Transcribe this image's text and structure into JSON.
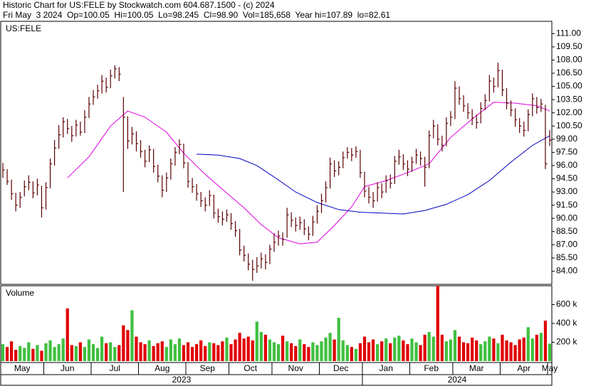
{
  "chart_data": {
    "type": "ohlc",
    "title": "Historic Chart for US:FELE by Stockwatch.com 604.687.1500 - (c) 2024",
    "subtitle": "Fri May  3 2024  Op=100.05  Hi=100.05  Lo=98.245  Cl=98.90  Vol=185,658  Year hi=107.89  lo=82.61",
    "symbol": "US:FELE",
    "bar_color": "#5a0000",
    "xlim": [
      -0.5,
      127.5
    ],
    "xticks": [
      {
        "value": -0.5,
        "label": "May"
      },
      {
        "value": 9.5,
        "label": "Jun"
      },
      {
        "value": 20.5,
        "label": "Jul"
      },
      {
        "value": 31.5,
        "label": "Aug"
      },
      {
        "value": 42.5,
        "label": "Sep"
      },
      {
        "value": 52.5,
        "label": "Oct"
      },
      {
        "value": 62.5,
        "label": "Nov"
      },
      {
        "value": 73.5,
        "label": "Dec"
      },
      {
        "value": 83.5,
        "label": "Jan"
      },
      {
        "value": 94.5,
        "label": "Feb"
      },
      {
        "value": 104.5,
        "label": "Mar"
      },
      {
        "value": 115.5,
        "label": "Apr"
      },
      {
        "value": 126.5,
        "label": "May"
      }
    ],
    "year_ticks": [
      {
        "value": -0.5,
        "label": "2023"
      },
      {
        "value": 83.5,
        "label": "2024"
      }
    ],
    "ylim": [
      82.5,
      112.4
    ],
    "yticks": [
      {
        "value": 84,
        "label": "84.00"
      },
      {
        "value": 85.5,
        "label": "85.50"
      },
      {
        "value": 87,
        "label": "87.00"
      },
      {
        "value": 88.5,
        "label": "88.50"
      },
      {
        "value": 90,
        "label": "90.00"
      },
      {
        "value": 91.5,
        "label": "91.50"
      },
      {
        "value": 93,
        "label": "93.00"
      },
      {
        "value": 94.5,
        "label": "94.50"
      },
      {
        "value": 96,
        "label": "96.00"
      },
      {
        "value": 97.5,
        "label": "97.50"
      },
      {
        "value": 99,
        "label": "99.00"
      },
      {
        "value": 100.5,
        "label": "100.50"
      },
      {
        "value": 102,
        "label": "102.00"
      },
      {
        "value": 103.5,
        "label": "103.50"
      },
      {
        "value": 105,
        "label": "105.00"
      },
      {
        "value": 106.5,
        "label": "106.50"
      },
      {
        "value": 108,
        "label": "108.00"
      },
      {
        "value": 109.5,
        "label": "109.50"
      },
      {
        "value": 111,
        "label": "111.00"
      }
    ],
    "high": [
      96.3,
      95.6,
      94.4,
      92.9,
      93.0,
      94.3,
      94.9,
      94.2,
      94.5,
      93.7,
      94.1,
      96.8,
      98.9,
      100.6,
      101.5,
      101.3,
      100.5,
      101.2,
      101.0,
      102.3,
      103.8,
      104.6,
      105.2,
      106.3,
      106.0,
      106.9,
      107.4,
      107.2,
      103.8,
      101.6,
      100.4,
      99.9,
      98.9,
      97.8,
      98.3,
      97.9,
      96.1,
      94.9,
      95.2,
      96.8,
      98.1,
      99.0,
      98.5,
      96.4,
      94.6,
      93.9,
      93.0,
      92.4,
      93.2,
      92.7,
      91.1,
      90.8,
      91.0,
      90.6,
      89.7,
      88.8,
      86.9,
      86.0,
      85.3,
      85.6,
      86.1,
      85.9,
      87.0,
      88.3,
      88.6,
      88.4,
      91.2,
      90.7,
      90.1,
      90.2,
      89.9,
      89.1,
      90.3,
      91.5,
      92.8,
      94.2,
      96.9,
      96.6,
      96.5,
      97.6,
      98.1,
      98.0,
      98.2,
      97.8,
      95.3,
      93.6,
      93.0,
      94.1,
      94.0,
      94.9,
      95.0,
      97.1,
      97.8,
      97.3,
      96.6,
      97.0,
      97.9,
      97.6,
      97.0,
      100.0,
      101.2,
      100.7,
      99.4,
      101.5,
      102.2,
      105.6,
      105.0,
      104.0,
      103.1,
      102.4,
      101.8,
      103.2,
      104.1,
      106.3,
      106.0,
      107.7,
      106.9,
      104.8,
      103.4,
      102.5,
      101.4,
      101.0,
      102.4,
      104.2,
      103.8,
      103.6,
      102.9,
      100.05
    ],
    "low": [
      94.6,
      93.8,
      92.1,
      90.8,
      91.2,
      92.5,
      93.2,
      92.3,
      92.6,
      90.1,
      91.0,
      93.4,
      96.0,
      97.9,
      99.2,
      99.6,
      98.7,
      99.3,
      99.4,
      99.7,
      101.4,
      102.9,
      103.6,
      104.2,
      104.3,
      104.8,
      105.9,
      105.6,
      93.0,
      97.9,
      98.4,
      97.6,
      96.9,
      95.8,
      96.4,
      95.2,
      94.1,
      92.4,
      93.0,
      94.4,
      96.0,
      97.3,
      95.7,
      93.5,
      92.9,
      92.0,
      91.3,
      90.8,
      91.4,
      90.0,
      89.5,
      89.2,
      89.6,
      88.7,
      87.9,
      85.8,
      85.1,
      84.1,
      82.9,
      83.8,
      84.3,
      84.2,
      84.8,
      86.2,
      86.9,
      86.9,
      87.8,
      89.0,
      88.5,
      88.7,
      88.1,
      87.5,
      88.0,
      89.4,
      90.6,
      91.8,
      93.4,
      94.7,
      94.9,
      95.7,
      96.8,
      96.5,
      96.9,
      94.6,
      92.4,
      91.7,
      91.2,
      91.9,
      92.3,
      92.9,
      93.4,
      93.9,
      96.1,
      95.5,
      94.8,
      95.3,
      96.2,
      96.0,
      93.6,
      95.7,
      99.1,
      98.3,
      97.6,
      98.2,
      100.5,
      101.3,
      102.9,
      102.1,
      101.3,
      100.6,
      100.2,
      100.8,
      102.3,
      103.3,
      104.3,
      104.9,
      103.9,
      102.4,
      101.6,
      100.4,
      99.7,
      99.3,
      99.9,
      101.6,
      101.9,
      102.1,
      95.6,
      98.245
    ],
    "close": [
      95.5,
      94.2,
      92.8,
      91.5,
      92.4,
      93.6,
      94.1,
      92.9,
      93.8,
      91.2,
      93.5,
      96.2,
      98.0,
      99.5,
      101.0,
      100.2,
      99.4,
      100.6,
      99.8,
      101.5,
      103.0,
      103.8,
      104.5,
      105.6,
      104.9,
      106.2,
      107.0,
      106.4,
      101.5,
      98.8,
      99.6,
      98.5,
      97.6,
      96.5,
      97.8,
      95.9,
      94.8,
      93.2,
      94.6,
      96.2,
      97.5,
      98.4,
      96.3,
      94.2,
      93.6,
      92.8,
      92.0,
      91.5,
      92.6,
      90.6,
      90.2,
      89.9,
      90.4,
      89.4,
      88.6,
      86.4,
      85.8,
      84.8,
      84.2,
      84.6,
      85.4,
      85.0,
      86.5,
      87.3,
      88.0,
      87.6,
      90.4,
      89.8,
      89.2,
      89.5,
      88.8,
      88.2,
      89.6,
      90.8,
      92.0,
      93.5,
      96.2,
      95.4,
      95.8,
      96.9,
      97.5,
      97.2,
      97.6,
      95.2,
      93.1,
      92.4,
      92.0,
      93.5,
      93.0,
      94.3,
      94.0,
      96.5,
      97.0,
      96.2,
      95.6,
      96.4,
      97.2,
      96.8,
      95.8,
      99.4,
      100.5,
      99.0,
      98.3,
      100.8,
      101.5,
      104.8,
      103.6,
      102.8,
      102.0,
      101.4,
      100.9,
      102.5,
      103.4,
      105.6,
      105.0,
      106.8,
      104.6,
      103.1,
      102.3,
      101.2,
      100.5,
      100.0,
      101.8,
      103.6,
      102.6,
      103.0,
      96.2,
      98.9
    ],
    "moving_averages": [
      {
        "color": "#e000e0",
        "x": [
          15,
          20,
          25,
          29,
          33,
          38,
          42,
          47,
          51,
          56,
          60,
          64,
          69,
          73,
          77,
          81,
          84,
          89,
          94,
          99,
          104,
          109,
          114,
          119,
          124,
          127
        ],
        "values": [
          94.6,
          97.0,
          100.5,
          102.2,
          101.5,
          99.8,
          97.4,
          95.0,
          93.3,
          91.2,
          89.3,
          87.8,
          87.1,
          87.3,
          89.2,
          91.3,
          93.6,
          94.3,
          95.2,
          96.2,
          99.2,
          101.3,
          103.2,
          103.1,
          102.8,
          102.2
        ]
      },
      {
        "color": "#0000c0",
        "x": [
          45,
          50,
          55,
          59,
          63,
          68,
          73,
          78,
          83,
          88,
          93,
          98,
          103,
          108,
          113,
          118,
          123,
          127
        ],
        "values": [
          97.3,
          97.2,
          96.8,
          96.0,
          94.7,
          93.0,
          91.8,
          91.0,
          90.7,
          90.6,
          90.5,
          90.9,
          91.6,
          92.7,
          94.3,
          96.4,
          98.3,
          99.4
        ]
      }
    ],
    "volume": {
      "title": "Volume",
      "up_color": "#40c040",
      "down_color": "#e00000",
      "ylim": [
        0,
        800000
      ],
      "yticks": [
        {
          "value": 200000,
          "label": "200 k"
        },
        {
          "value": 400000,
          "label": "400 k"
        },
        {
          "value": 600000,
          "label": "600 k"
        }
      ],
      "values": [
        180000,
        150000,
        210000,
        120000,
        160000,
        140000,
        200000,
        130000,
        170000,
        110000,
        190000,
        220000,
        150000,
        180000,
        240000,
        560000,
        170000,
        160000,
        200000,
        150000,
        230000,
        180000,
        140000,
        260000,
        190000,
        200000,
        150000,
        170000,
        380000,
        330000,
        540000,
        260000,
        200000,
        180000,
        220000,
        160000,
        190000,
        210000,
        150000,
        230000,
        180000,
        240000,
        170000,
        200000,
        150000,
        180000,
        220000,
        160000,
        200000,
        190000,
        170000,
        210000,
        250000,
        180000,
        230000,
        300000,
        240000,
        260000,
        220000,
        420000,
        310000,
        280000,
        230000,
        200000,
        180000,
        270000,
        210000,
        190000,
        160000,
        230000,
        180000,
        150000,
        200000,
        170000,
        210000,
        250000,
        300000,
        230000,
        460000,
        220000,
        170000,
        150000,
        130000,
        190000,
        260000,
        200000,
        230000,
        180000,
        210000,
        240000,
        190000,
        250000,
        270000,
        220000,
        180000,
        240000,
        200000,
        170000,
        280000,
        310000,
        260000,
        800000,
        280000,
        210000,
        230000,
        330000,
        260000,
        200000,
        190000,
        250000,
        220000,
        180000,
        210000,
        260000,
        240000,
        190000,
        280000,
        220000,
        200000,
        170000,
        230000,
        250000,
        360000,
        240000,
        280000,
        300000,
        430000,
        185658
      ]
    }
  }
}
